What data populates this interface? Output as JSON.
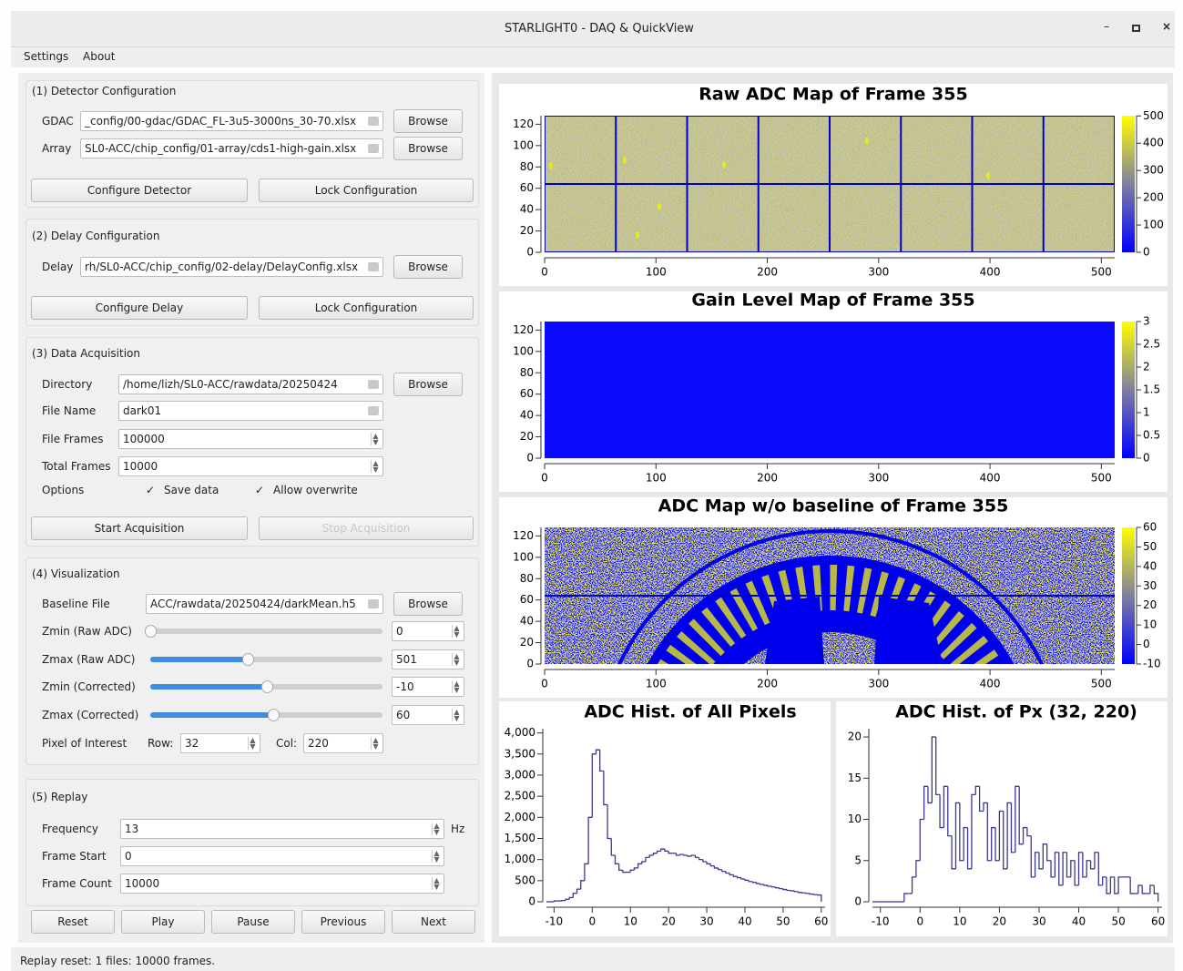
{
  "window": {
    "title": "STARLIGHT0 - DAQ & QuickView"
  },
  "menu": [
    "Settings",
    "About"
  ],
  "detector": {
    "title": "(1) Detector Configuration",
    "gdac": {
      "label": "GDAC",
      "field": "_config/00-gdac/GDAC_FL-3u5-3000ns_30-70.xlsx",
      "button": "Browse"
    },
    "array": {
      "label": "Array",
      "field": "SL0-ACC/chip_config/01-array/cds1-high-gain.xlsx",
      "button": "Browse"
    },
    "buttons": [
      "Configure Detector",
      "Lock Configuration"
    ]
  },
  "delay": {
    "title": "(2) Delay Configuration",
    "delay": {
      "label": "Delay",
      "field": "rh/SL0-ACC/chip_config/02-delay/DelayConfig.xlsx",
      "button": "Browse"
    },
    "buttons": [
      "Configure Delay",
      "Lock Configuration"
    ]
  },
  "acquisition": {
    "title": "(3) Data Acquisition",
    "directory": {
      "label": "Directory",
      "field": "/home/lizh/SL0-ACC/rawdata/20250424",
      "button": "Browse"
    },
    "file_name": {
      "label": "File Name",
      "field": "dark01"
    },
    "file_frames": {
      "label": "File Frames",
      "spin": "100000"
    },
    "total_frames": {
      "label": "Total Frames",
      "spin": "10000"
    },
    "options": {
      "label": "Options",
      "checks": [
        "Save data",
        "Allow overwrite"
      ]
    },
    "buttons": [
      "Start Acquisition",
      "Stop Acquisition"
    ]
  },
  "visualization": {
    "title": "(4) Visualization",
    "baseline": {
      "label": "Baseline File",
      "field": "ACC/rawdata/20250424/darkMean.h5",
      "button": "Browse"
    },
    "zmin_raw": {
      "label": "Zmin (Raw ADC)",
      "spin": "0"
    },
    "zmax_raw": {
      "label": "Zmax (Raw ADC)",
      "spin": "501"
    },
    "zmin_corr": {
      "label": "Zmin (Corrected)",
      "spin": "-10"
    },
    "zmax_corr": {
      "label": "Zmax (Corrected)",
      "spin": "60"
    },
    "pixel": {
      "label": "Pixel of Interest",
      "row_label": "Row:",
      "row": "32",
      "col_label": "Col:",
      "col": "220"
    }
  },
  "replay": {
    "title": "(5) Replay",
    "frequency": {
      "label": "Frequency",
      "spin": "13",
      "unit": "Hz"
    },
    "frame_start": {
      "label": "Frame Start",
      "spin": "0"
    },
    "frame_count": {
      "label": "Frame Count",
      "spin": "10000"
    },
    "buttons": [
      "Reset",
      "Play",
      "Pause",
      "Previous",
      "Next"
    ]
  },
  "status": "Replay reset: 1 files: 10000 frames.",
  "chart_data": [
    {
      "type": "heatmap",
      "title": "Raw ADC Map of Frame 355",
      "xlim": [
        0,
        512
      ],
      "xticks": [
        0,
        100,
        200,
        300,
        400,
        500
      ],
      "ylim": [
        0,
        128
      ],
      "yticks": [
        0,
        20,
        40,
        60,
        80,
        100,
        120
      ],
      "zlim": [
        0,
        501
      ],
      "zticks": [
        0,
        100,
        200,
        300,
        400,
        500
      ]
    },
    {
      "type": "heatmap",
      "title": "Gain Level Map of Frame 355",
      "xlim": [
        0,
        512
      ],
      "xticks": [
        0,
        100,
        200,
        300,
        400,
        500
      ],
      "ylim": [
        0,
        128
      ],
      "yticks": [
        0,
        20,
        40,
        60,
        80,
        100,
        120
      ],
      "zlim": [
        0,
        3
      ],
      "zticks": [
        0,
        0.5,
        1,
        1.5,
        2,
        2.5,
        3
      ]
    },
    {
      "type": "heatmap",
      "title": "ADC Map w/o baseline of Frame 355",
      "xlim": [
        0,
        512
      ],
      "xticks": [
        0,
        100,
        200,
        300,
        400,
        500
      ],
      "ylim": [
        0,
        128
      ],
      "yticks": [
        0,
        20,
        40,
        60,
        80,
        100,
        120
      ],
      "zlim": [
        -10,
        60
      ],
      "zticks": [
        -10,
        0,
        10,
        20,
        30,
        40,
        50,
        60
      ]
    },
    {
      "type": "histogram",
      "title": "ADC Hist. of All Pixels",
      "color": "#3b3b8c",
      "bins": [
        -10,
        -9,
        -8,
        -7,
        -6,
        -5,
        -4,
        -3,
        -2,
        -1,
        0,
        1,
        2,
        3,
        4,
        5,
        6,
        7,
        8,
        9,
        10,
        11,
        12,
        13,
        14,
        15,
        16,
        17,
        18,
        19,
        20,
        21,
        22,
        23,
        24,
        25,
        26,
        27,
        28,
        29,
        30,
        31,
        32,
        33,
        34,
        35,
        36,
        37,
        38,
        39,
        40,
        41,
        42,
        43,
        44,
        45,
        46,
        47,
        48,
        49,
        50,
        51,
        52,
        53,
        54,
        55,
        56,
        57,
        58,
        59,
        60
      ],
      "values": [
        20,
        20,
        30,
        60,
        100,
        200,
        300,
        500,
        900,
        2000,
        3500,
        3600,
        3100,
        2300,
        1500,
        1100,
        900,
        750,
        700,
        700,
        750,
        800,
        900,
        950,
        1050,
        1100,
        1150,
        1200,
        1250,
        1200,
        1150,
        1150,
        1100,
        1120,
        1100,
        1080,
        1100,
        1050,
        1000,
        950,
        900,
        850,
        800,
        760,
        720,
        680,
        640,
        600,
        570,
        540,
        510,
        480,
        460,
        430,
        410,
        390,
        370,
        350,
        330,
        310,
        290,
        270,
        260,
        240,
        220,
        210,
        200,
        180,
        170,
        160
      ],
      "xlim": [
        -12,
        61
      ],
      "xticks": [
        -10,
        0,
        10,
        20,
        30,
        40,
        50,
        60
      ],
      "ylim": [
        0,
        4100
      ],
      "yticks": [
        0,
        500,
        {
          "value": 1000,
          "label": "1,000"
        },
        {
          "value": 1500,
          "label": "1,500"
        },
        {
          "value": 2000,
          "label": "2,000"
        },
        {
          "value": 2500,
          "label": "2,500"
        },
        {
          "value": 3000,
          "label": "3,000"
        },
        {
          "value": 3500,
          "label": "3,500"
        },
        {
          "value": 4000,
          "label": "4,000"
        }
      ]
    },
    {
      "type": "histogram",
      "title": "ADC Hist. of Px (32, 220)",
      "color": "#3b3b8c",
      "bins": [
        -10,
        -9,
        -8,
        -7,
        -6,
        -5,
        -4,
        -3,
        -2,
        -1,
        0,
        1,
        2,
        3,
        4,
        5,
        6,
        7,
        8,
        9,
        10,
        11,
        12,
        13,
        14,
        15,
        16,
        17,
        18,
        19,
        20,
        21,
        22,
        23,
        24,
        25,
        26,
        27,
        28,
        29,
        30,
        31,
        32,
        33,
        34,
        35,
        36,
        37,
        38,
        39,
        40,
        41,
        42,
        43,
        44,
        45,
        46,
        47,
        48,
        49,
        50,
        51,
        52,
        53,
        54,
        55,
        56,
        57,
        58,
        59,
        60
      ],
      "values": [
        0,
        0,
        0,
        0,
        0,
        0,
        1,
        1,
        3,
        5,
        10,
        14,
        12,
        20,
        13,
        9,
        14,
        8,
        4,
        12,
        5,
        9,
        4,
        13,
        14,
        11,
        12,
        5,
        9,
        5,
        11,
        4,
        12,
        6,
        14,
        7,
        9,
        8,
        3,
        6,
        4,
        7,
        5,
        3,
        6,
        2,
        6,
        3,
        5,
        2,
        6,
        3,
        5,
        4,
        6,
        2,
        3,
        1,
        3,
        1,
        3,
        3,
        3,
        1,
        1,
        2,
        1,
        1,
        2,
        1
      ],
      "xlim": [
        -12,
        61
      ],
      "xticks": [
        -10,
        0,
        10,
        20,
        30,
        40,
        50,
        60
      ],
      "ylim": [
        0,
        21
      ],
      "yticks": [
        0,
        5,
        10,
        15,
        20
      ]
    }
  ]
}
